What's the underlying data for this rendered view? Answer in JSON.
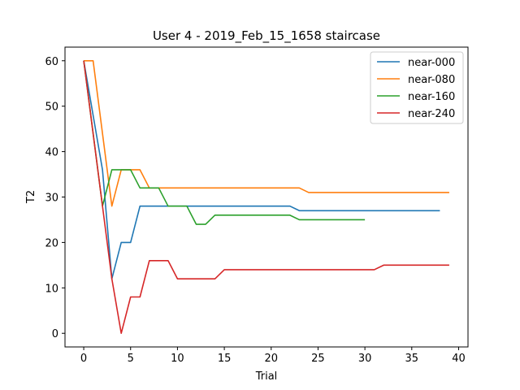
{
  "chart_data": {
    "type": "line",
    "title": "User 4 - 2019_Feb_15_1658 staircase",
    "xlabel": "Trial",
    "ylabel": "T2",
    "xlim": [
      -2,
      41
    ],
    "ylim": [
      -3,
      63
    ],
    "xticks": [
      0,
      5,
      10,
      15,
      20,
      25,
      30,
      35,
      40
    ],
    "yticks": [
      0,
      10,
      20,
      30,
      40,
      50,
      60
    ],
    "grid": false,
    "legend_position": "top-right",
    "series": [
      {
        "name": "near-000",
        "color": "#1f77b4",
        "x": [
          0,
          1,
          2,
          3,
          4,
          5,
          6,
          7,
          8,
          9,
          10,
          11,
          12,
          13,
          14,
          15,
          16,
          17,
          18,
          19,
          20,
          21,
          22,
          23,
          24,
          25,
          26,
          27,
          28,
          29,
          30,
          31,
          32,
          33,
          34,
          35,
          36,
          37,
          38
        ],
        "y": [
          60,
          48,
          36,
          12,
          20,
          20,
          28,
          28,
          28,
          28,
          28,
          28,
          28,
          28,
          28,
          28,
          28,
          28,
          28,
          28,
          28,
          28,
          28,
          27,
          27,
          27,
          27,
          27,
          27,
          27,
          27,
          27,
          27,
          27,
          27,
          27,
          27,
          27,
          27
        ]
      },
      {
        "name": "near-080",
        "color": "#ff7f0e",
        "x": [
          0,
          1,
          2,
          3,
          4,
          5,
          6,
          7,
          8,
          9,
          10,
          11,
          12,
          13,
          14,
          15,
          16,
          17,
          18,
          19,
          20,
          21,
          22,
          23,
          24,
          25,
          26,
          27,
          28,
          29,
          30,
          31,
          32,
          33,
          34,
          35,
          36,
          37,
          38,
          39
        ],
        "y": [
          60,
          60,
          44,
          28,
          36,
          36,
          36,
          32,
          32,
          32,
          32,
          32,
          32,
          32,
          32,
          32,
          32,
          32,
          32,
          32,
          32,
          32,
          32,
          32,
          31,
          31,
          31,
          31,
          31,
          31,
          31,
          31,
          31,
          31,
          31,
          31,
          31,
          31,
          31,
          31
        ]
      },
      {
        "name": "near-160",
        "color": "#2ca02c",
        "x": [
          0,
          1,
          2,
          3,
          4,
          5,
          6,
          7,
          8,
          9,
          10,
          11,
          12,
          13,
          14,
          15,
          16,
          17,
          18,
          19,
          20,
          21,
          22,
          23,
          24,
          25,
          26,
          27,
          28,
          29,
          30
        ],
        "y": [
          60,
          44,
          28,
          36,
          36,
          36,
          32,
          32,
          32,
          28,
          28,
          28,
          24,
          24,
          26,
          26,
          26,
          26,
          26,
          26,
          26,
          26,
          26,
          25,
          25,
          25,
          25,
          25,
          25,
          25,
          25
        ]
      },
      {
        "name": "near-240",
        "color": "#d62728",
        "x": [
          0,
          1,
          2,
          3,
          4,
          5,
          6,
          7,
          8,
          9,
          10,
          11,
          12,
          13,
          14,
          15,
          16,
          17,
          18,
          19,
          20,
          21,
          22,
          23,
          24,
          25,
          26,
          27,
          28,
          29,
          30,
          31,
          32,
          33,
          34,
          35,
          36,
          37,
          38,
          39
        ],
        "y": [
          60,
          44,
          28,
          12,
          0,
          8,
          8,
          16,
          16,
          16,
          12,
          12,
          12,
          12,
          12,
          14,
          14,
          14,
          14,
          14,
          14,
          14,
          14,
          14,
          14,
          14,
          14,
          14,
          14,
          14,
          14,
          14,
          15,
          15,
          15,
          15,
          15,
          15,
          15,
          15
        ]
      }
    ]
  }
}
